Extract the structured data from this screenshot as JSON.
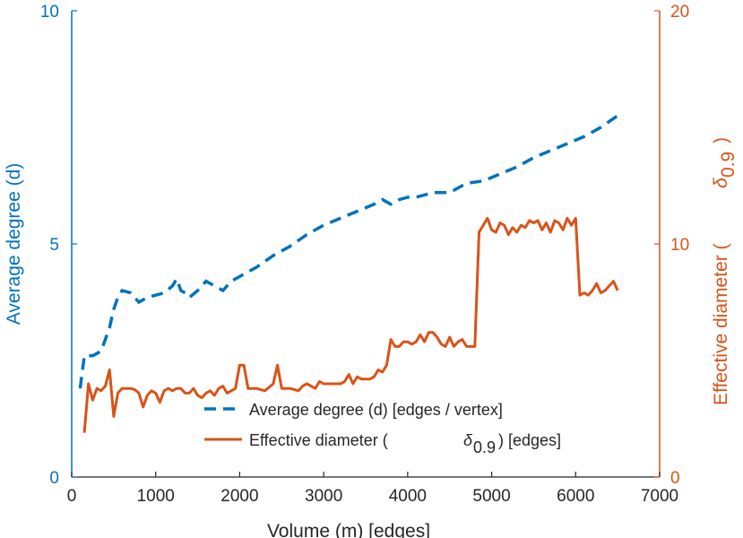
{
  "chart_data": {
    "type": "line",
    "title": "",
    "xlabel": "Volume (m) [edges]",
    "ylabel_left": "Average degree (d)",
    "ylabel_right_prefix": "Effective diameter (",
    "ylabel_right_symbol": "δ",
    "ylabel_right_subscript": "0.9",
    "ylabel_right_suffix": ")",
    "xlim": [
      0,
      7000
    ],
    "ylim_left": [
      0,
      10
    ],
    "ylim_right": [
      0,
      20
    ],
    "x_ticks": [
      "0",
      "1000",
      "2000",
      "3000",
      "4000",
      "5000",
      "6000",
      "7000"
    ],
    "y_left_ticks": [
      "0",
      "5",
      "10"
    ],
    "y_right_ticks": [
      "0",
      "10",
      "20"
    ],
    "colors": {
      "left": "#0072BD",
      "right": "#D95319",
      "axis_text": "#262626"
    },
    "legend": {
      "position": "bottom-center",
      "entries": [
        {
          "label": "Average degree (d) [edges / vertex]",
          "style": "dashed",
          "color": "#0072BD"
        },
        {
          "label_prefix": "Effective diameter (",
          "symbol": "δ",
          "subscript": "0.9",
          "label_suffix": ") [edges]",
          "style": "solid",
          "color": "#D95319"
        }
      ]
    },
    "series": [
      {
        "name": "Average degree (d) [edges / vertex]",
        "axis": "left",
        "style": "dashed",
        "x": [
          100,
          150,
          250,
          350,
          450,
          500,
          550,
          600,
          700,
          800,
          900,
          1000,
          1100,
          1200,
          1250,
          1300,
          1350,
          1400,
          1500,
          1600,
          1700,
          1800,
          1900,
          2000,
          2100,
          2200,
          2400,
          2600,
          2800,
          3000,
          3200,
          3400,
          3600,
          3700,
          3800,
          3900,
          4000,
          4100,
          4300,
          4500,
          4700,
          4900,
          5100,
          5300,
          5500,
          5700,
          5900,
          6100,
          6300,
          6500
        ],
        "values": [
          1.9,
          2.6,
          2.6,
          2.7,
          3.2,
          3.6,
          3.85,
          4.0,
          3.95,
          3.75,
          3.85,
          3.9,
          3.95,
          4.1,
          4.25,
          4.0,
          3.95,
          3.85,
          4.0,
          4.2,
          4.1,
          4.0,
          4.2,
          4.3,
          4.4,
          4.5,
          4.75,
          4.95,
          5.2,
          5.4,
          5.55,
          5.7,
          5.85,
          5.95,
          5.85,
          5.95,
          6.0,
          6.0,
          6.1,
          6.1,
          6.3,
          6.35,
          6.5,
          6.65,
          6.85,
          7.0,
          7.15,
          7.3,
          7.5,
          7.75
        ]
      },
      {
        "name": "Effective diameter (δ0.9) [edges]",
        "axis": "right",
        "style": "solid",
        "x": [
          150,
          200,
          250,
          300,
          350,
          400,
          450,
          500,
          550,
          600,
          650,
          700,
          750,
          800,
          850,
          900,
          950,
          1000,
          1050,
          1100,
          1150,
          1200,
          1250,
          1300,
          1350,
          1400,
          1450,
          1500,
          1550,
          1600,
          1650,
          1700,
          1750,
          1800,
          1850,
          1900,
          1950,
          2000,
          2050,
          2100,
          2150,
          2200,
          2300,
          2400,
          2450,
          2500,
          2600,
          2700,
          2750,
          2800,
          2900,
          2950,
          3000,
          3100,
          3150,
          3200,
          3250,
          3300,
          3350,
          3400,
          3450,
          3500,
          3550,
          3600,
          3650,
          3700,
          3750,
          3800,
          3850,
          3900,
          3950,
          4000,
          4050,
          4100,
          4150,
          4200,
          4250,
          4300,
          4350,
          4400,
          4450,
          4500,
          4550,
          4600,
          4650,
          4700,
          4750,
          4800,
          4850,
          4900,
          4950,
          5000,
          5050,
          5100,
          5150,
          5200,
          5250,
          5300,
          5350,
          5400,
          5450,
          5500,
          5550,
          5600,
          5650,
          5700,
          5750,
          5800,
          5850,
          5900,
          5950,
          6000,
          6050,
          6100,
          6150,
          6200,
          6250,
          6300,
          6350,
          6400,
          6450,
          6500
        ],
        "values": [
          1.9,
          4.0,
          3.3,
          3.8,
          3.7,
          3.9,
          4.6,
          2.6,
          3.6,
          3.8,
          3.8,
          3.8,
          3.75,
          3.6,
          3.0,
          3.5,
          3.7,
          3.6,
          3.2,
          3.7,
          3.8,
          3.7,
          3.8,
          3.8,
          3.6,
          3.6,
          3.8,
          3.5,
          3.4,
          3.6,
          3.7,
          3.5,
          3.8,
          3.9,
          3.6,
          3.7,
          3.8,
          4.8,
          4.8,
          3.8,
          3.8,
          3.8,
          3.7,
          4.0,
          4.8,
          3.8,
          3.8,
          3.7,
          3.9,
          4.0,
          3.8,
          4.1,
          4.0,
          4.0,
          4.0,
          4.0,
          4.1,
          4.4,
          4.0,
          4.3,
          4.2,
          4.2,
          4.2,
          4.3,
          4.6,
          4.5,
          4.8,
          5.9,
          5.6,
          5.6,
          5.8,
          5.8,
          5.7,
          5.8,
          6.1,
          5.8,
          6.2,
          6.2,
          6.0,
          5.7,
          5.6,
          6.0,
          5.6,
          5.8,
          5.9,
          5.6,
          5.6,
          5.6,
          10.5,
          10.8,
          11.1,
          10.6,
          10.5,
          10.9,
          10.8,
          10.4,
          10.7,
          10.5,
          10.8,
          10.7,
          11.0,
          10.9,
          11.0,
          10.6,
          10.9,
          10.5,
          11.0,
          10.9,
          10.6,
          11.1,
          10.8,
          11.1,
          7.8,
          7.9,
          7.8,
          8.0,
          8.3,
          7.9,
          8.0,
          8.2,
          8.4,
          8.0
        ]
      }
    ]
  }
}
